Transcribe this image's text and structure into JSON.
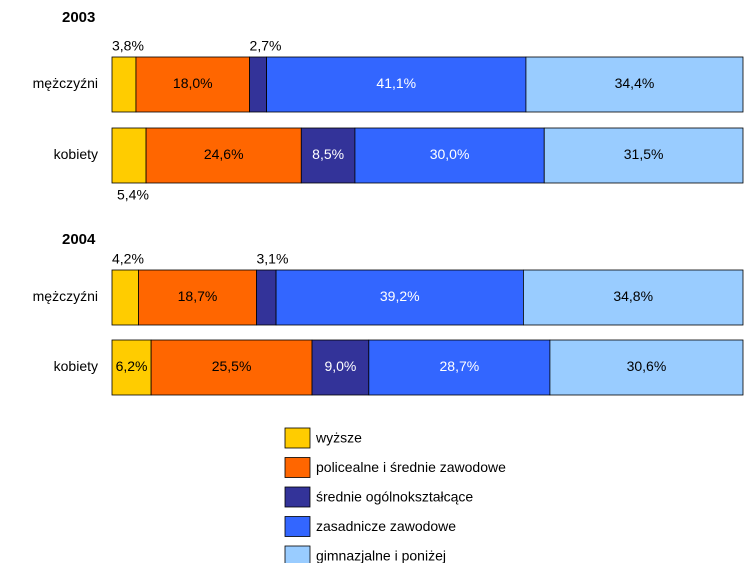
{
  "chart_data": {
    "type": "bar",
    "orientation": "horizontal",
    "stacked": true,
    "groups": [
      "2003",
      "2004"
    ],
    "categories": [
      [
        "mężczyźni",
        "kobiety"
      ],
      [
        "mężczyźni",
        "kobiety"
      ]
    ],
    "xlim": [
      0,
      100
    ],
    "series": [
      {
        "name": "wyższe",
        "color": "#ffcc00",
        "label_color": "#000000",
        "values": [
          [
            3.8,
            5.4
          ],
          [
            4.2,
            6.2
          ]
        ],
        "value_labels": [
          [
            "3,8%",
            "5,4%"
          ],
          [
            "4,2%",
            "6,2%"
          ]
        ]
      },
      {
        "name": "policealne i średnie zawodowe",
        "color": "#ff6600",
        "label_color": "#000000",
        "values": [
          [
            18.0,
            24.6
          ],
          [
            18.7,
            25.5
          ]
        ],
        "value_labels": [
          [
            "18,0%",
            "24,6%"
          ],
          [
            "18,7%",
            "25,5%"
          ]
        ]
      },
      {
        "name": "średnie ogólnokształcące",
        "color": "#333399",
        "label_color": "#ffffff",
        "values": [
          [
            2.7,
            8.5
          ],
          [
            3.1,
            9.0
          ]
        ],
        "value_labels": [
          [
            "2,7%",
            "8,5%"
          ],
          [
            "3,1%",
            "9,0%"
          ]
        ]
      },
      {
        "name": "zasadnicze zawodowe",
        "color": "#3366ff",
        "label_color": "#ffffff",
        "values": [
          [
            41.1,
            30.0
          ],
          [
            39.2,
            28.7
          ]
        ],
        "value_labels": [
          [
            "41,1%",
            "30,0%"
          ],
          [
            "39,2%",
            "28,7%"
          ]
        ]
      },
      {
        "name": "gimnazjalne i poniżej",
        "color": "#99ccff",
        "label_color": "#000000",
        "values": [
          [
            34.4,
            31.5
          ],
          [
            34.8,
            30.6
          ]
        ],
        "value_labels": [
          [
            "34,4%",
            "31,5%"
          ],
          [
            "34,8%",
            "30,6%"
          ]
        ]
      }
    ]
  }
}
